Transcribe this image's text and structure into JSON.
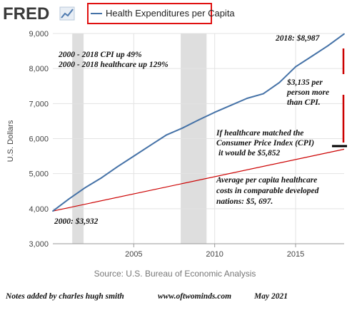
{
  "header": {
    "logo_text": "FRED",
    "legend_label": "Health Expenditures per Capita"
  },
  "chart_data": {
    "type": "line",
    "title": "",
    "xlabel": "",
    "ylabel": "U.S. Dollars",
    "xlim": [
      2000,
      2018
    ],
    "ylim": [
      3000,
      9000
    ],
    "x_ticks": [
      "2005",
      "2010",
      "2015"
    ],
    "y_ticks": [
      "3,000",
      "4,000",
      "5,000",
      "6,000",
      "7,000",
      "8,000",
      "9,000"
    ],
    "grid": true,
    "recession_shading": [
      [
        2001.2,
        2001.9
      ],
      [
        2007.9,
        2009.5
      ]
    ],
    "series": [
      {
        "name": "Health Expenditures per Capita",
        "color": "#4572a7",
        "x": [
          2000,
          2001,
          2002,
          2003,
          2004,
          2005,
          2006,
          2007,
          2008,
          2009,
          2010,
          2011,
          2012,
          2013,
          2014,
          2015,
          2016,
          2017,
          2018
        ],
        "values": [
          3932,
          4280,
          4600,
          4880,
          5200,
          5500,
          5800,
          6100,
          6300,
          6530,
          6750,
          6950,
          7150,
          7280,
          7600,
          8050,
          8350,
          8650,
          8987
        ]
      }
    ],
    "annotation_lines": [
      {
        "color": "#cc0000",
        "x": [
          2000,
          2018
        ],
        "y": [
          3932,
          5697
        ]
      }
    ],
    "source": "Source: U.S. Bureau of Economic Analysis"
  },
  "annotations": {
    "cpi_line1": "2000 - 2018 CPI up 49%",
    "cpi_line2": "2000 - 2018 healthcare up 129%",
    "peak_value": "2018: $8,987",
    "diff_line1": "$3,135 per",
    "diff_line2": "person more",
    "diff_line3": "than CPI.",
    "cpi_match_line1": "If healthcare matched the",
    "cpi_match_line2": "Consumer Price Index (CPI)",
    "cpi_match_line3": "it would be $5,852",
    "avg_line1": "Average per capita healthcare",
    "avg_line2": "costs in comparable developed",
    "avg_line3": "nations: $5, 697.",
    "start_value": "2000: $3,932"
  },
  "footer": {
    "notes": "Notes added by charles hugh smith",
    "site": "www.oftwominds.com",
    "date": "May 2021"
  },
  "colors": {
    "series": "#4572a7",
    "annotation_red": "#cc0000",
    "recession_gray": "#dedede",
    "legend_box_border": "#e01010"
  }
}
